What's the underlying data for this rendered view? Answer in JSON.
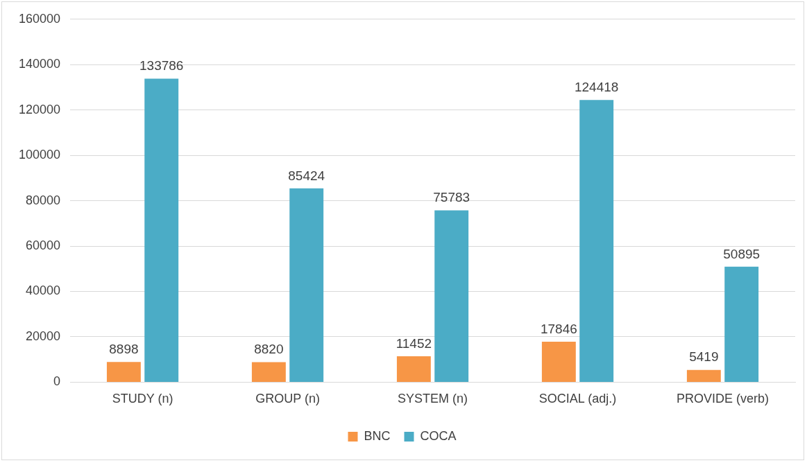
{
  "chart_data": {
    "type": "bar",
    "categories": [
      "STUDY (n)",
      "GROUP (n)",
      "SYSTEM (n)",
      "SOCIAL (adj.)",
      "PROVIDE (verb)"
    ],
    "series": [
      {
        "name": "BNC",
        "color": "#f79646",
        "values": [
          8898,
          8820,
          11452,
          17846,
          5419
        ]
      },
      {
        "name": "COCA",
        "color": "#4bacc6",
        "values": [
          133786,
          85424,
          75783,
          124418,
          50895
        ]
      }
    ],
    "ylim": [
      0,
      160000
    ],
    "yticks": [
      0,
      20000,
      40000,
      60000,
      80000,
      100000,
      120000,
      140000,
      160000
    ],
    "grid": "y",
    "legend": "bottom",
    "data_labels": true
  }
}
